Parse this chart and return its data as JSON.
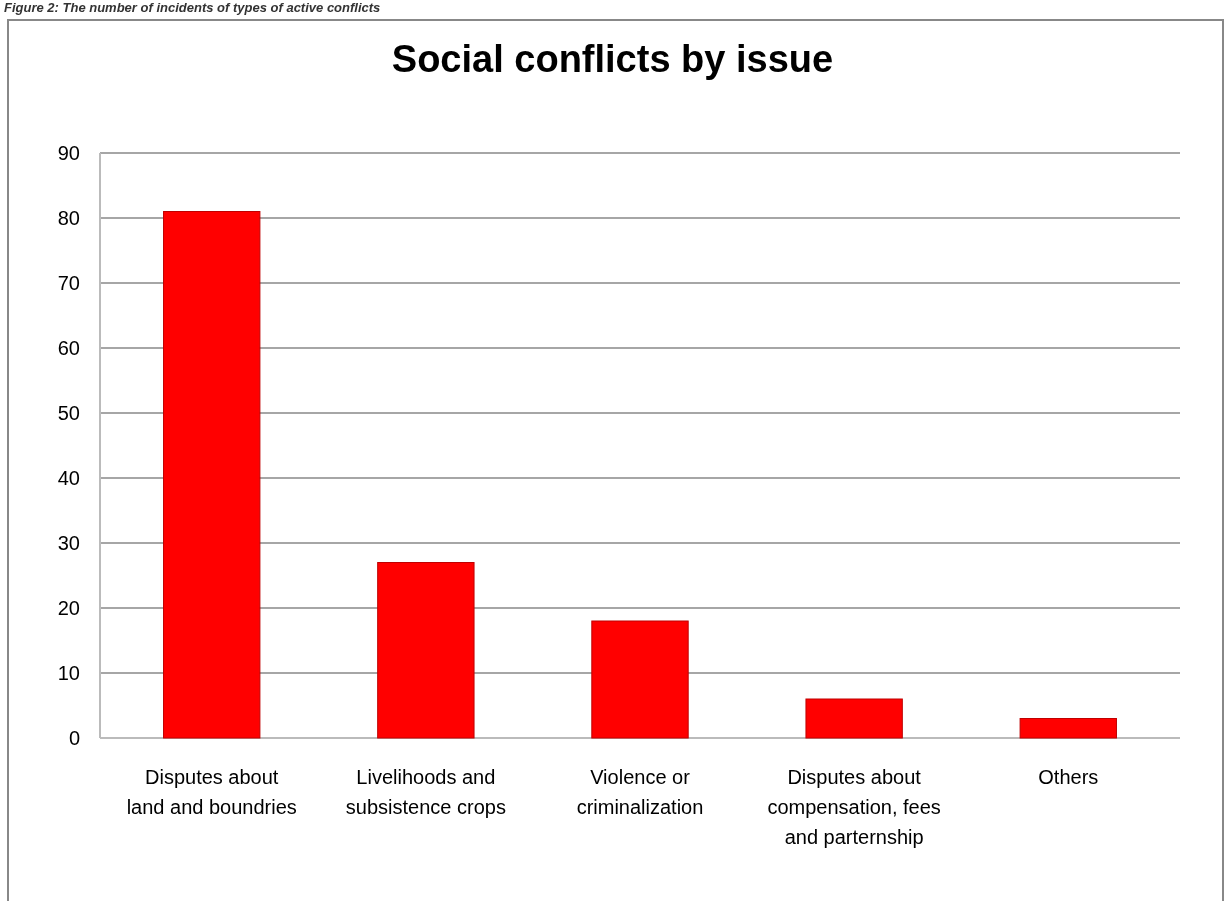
{
  "chart_data": {
    "type": "bar",
    "title": "Social conflicts by issue",
    "annotations": [
      "Figure 2: The number of incidents of types of active conflicts"
    ],
    "categories": [
      "Disputes about land and boundries",
      "Livelihoods and subsistence crops",
      "Violence or criminalization",
      "Disputes about compensation, fees and parternship",
      "Others"
    ],
    "values": [
      81,
      27,
      18,
      6,
      3
    ],
    "color": "#ff0000",
    "ylim": [
      0,
      90
    ],
    "yticks": [
      0,
      10,
      20,
      30,
      40,
      50,
      60,
      70,
      80,
      90
    ],
    "grid": "y"
  }
}
